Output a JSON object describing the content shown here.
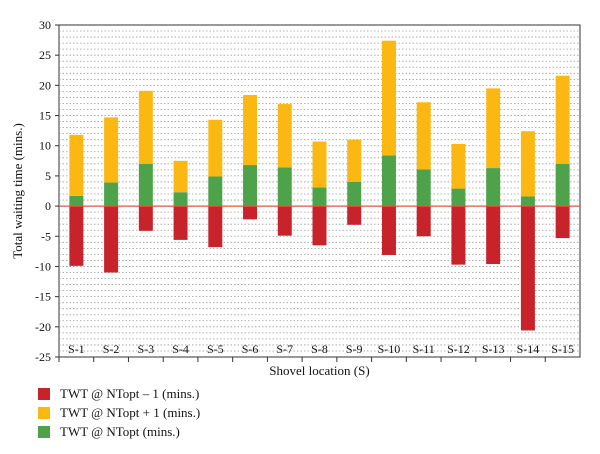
{
  "chart_data": {
    "type": "bar",
    "stacked": true,
    "categories": [
      "S-1",
      "S-2",
      "S-3",
      "S-4",
      "S-5",
      "S-6",
      "S-7",
      "S-8",
      "S-9",
      "S-10",
      "S-11",
      "S-12",
      "S-13",
      "S-14",
      "S-15"
    ],
    "xlabel": "Shovel location (S)",
    "ylabel": "Total waiting time (mins.)",
    "ylim": [
      -25,
      30
    ],
    "yticks": [
      30,
      25,
      20,
      15,
      10,
      5,
      0,
      -5,
      -10,
      -15,
      -20,
      -25
    ],
    "grid": "horizontal dotted",
    "zero_line_color": "#e8543a",
    "series": [
      {
        "name": "TWT @ NTopt – 1 (mins.)",
        "color": "#c8232a",
        "values": [
          -9.9,
          -11.0,
          -4.1,
          -5.6,
          -6.8,
          -2.2,
          -4.9,
          -6.5,
          -3.1,
          -8.1,
          -5.0,
          -9.7,
          -9.6,
          -20.6,
          -5.3
        ]
      },
      {
        "name": "TWT @ NTopt + 1 (mins.)",
        "color": "#fbb813",
        "values": [
          10.1,
          10.8,
          12.1,
          5.2,
          9.4,
          11.6,
          10.5,
          7.6,
          7.0,
          19.0,
          11.1,
          7.4,
          13.2,
          10.8,
          14.6
        ]
      },
      {
        "name": "TWT @ NTopt (mins.)",
        "color": "#4ea34a",
        "values": [
          1.7,
          3.9,
          7.0,
          2.3,
          4.9,
          6.8,
          6.4,
          3.1,
          4.0,
          8.4,
          6.1,
          2.9,
          6.3,
          1.6,
          7.0
        ]
      }
    ],
    "legend_position": "bottom-left"
  }
}
